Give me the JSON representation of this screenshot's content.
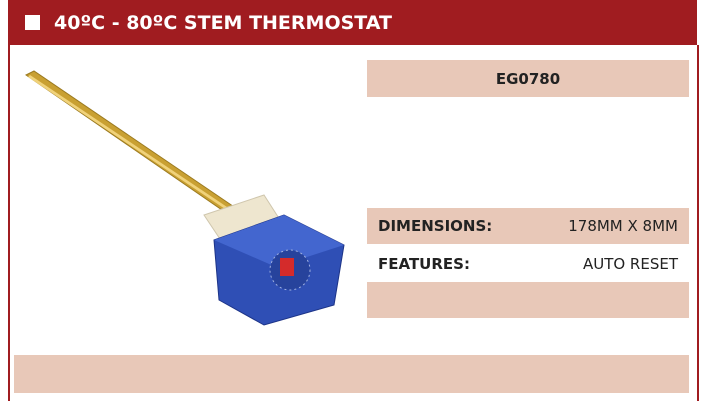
{
  "header": {
    "title": "40ºC - 80ºC STEM THERMOSTAT"
  },
  "product": {
    "code": "EG0780",
    "specs": [
      {
        "label": "DIMENSIONS:",
        "value": "178MM X 8MM"
      },
      {
        "label": "FEATURES:",
        "value": "AUTO RESET"
      }
    ]
  }
}
